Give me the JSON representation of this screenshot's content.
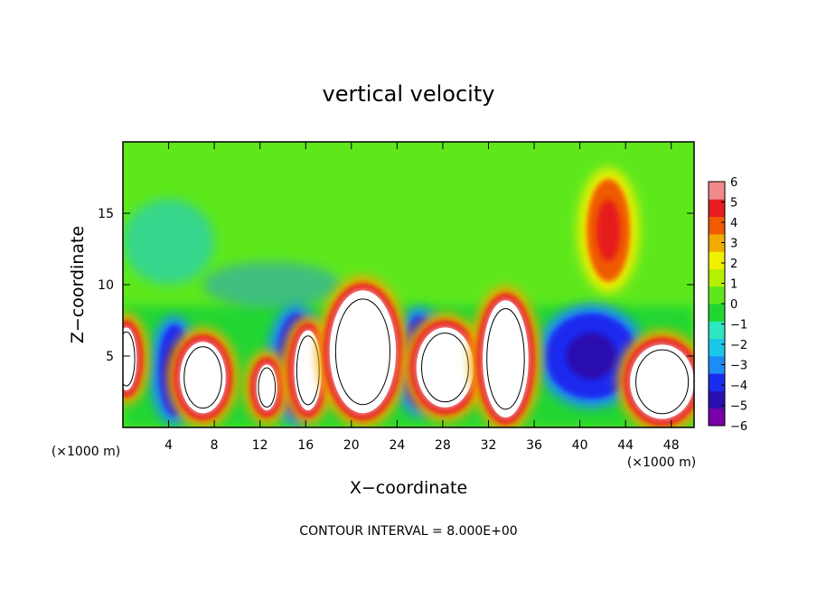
{
  "chart_data": {
    "type": "heatmap",
    "title": "vertical velocity",
    "xlabel": "X−coordinate",
    "ylabel": "Z−coordinate",
    "x_unit_left": "(×1000 m)",
    "x_unit_right": "(×1000 m)",
    "footer": "CONTOUR INTERVAL = 8.000E+00",
    "xlim": [
      0,
      50
    ],
    "ylim": [
      0,
      20
    ],
    "x_ticks": [
      4,
      8,
      12,
      16,
      20,
      24,
      28,
      32,
      36,
      40,
      44,
      48
    ],
    "x_tick_labels": [
      "4",
      "8",
      "12",
      "16",
      "20",
      "24",
      "28",
      "32",
      "36",
      "40",
      "44",
      "48"
    ],
    "y_ticks": [
      5,
      10,
      15
    ],
    "y_tick_labels": [
      "5",
      "10",
      "15"
    ],
    "colorbar": {
      "range": [
        -6,
        6
      ],
      "ticks": [
        6,
        5,
        4,
        3,
        2,
        1,
        0,
        -1,
        -2,
        -3,
        -4,
        -5,
        -6
      ],
      "tick_labels": [
        "6",
        "5",
        "4",
        "3",
        "2",
        "1",
        "0",
        "−1",
        "−2",
        "−3",
        "−4",
        "−5",
        "−6"
      ],
      "colors": [
        "#7a00a8",
        "#2a10b0",
        "#1a2cf0",
        "#1e8cf5",
        "#19c8e8",
        "#2ee6c0",
        "#22d630",
        "#5ee81c",
        "#b4f000",
        "#f0f000",
        "#f0aa00",
        "#f05a00",
        "#e61e1e",
        "#f08a8a"
      ]
    },
    "updrafts_gt6": [
      {
        "xc": 0.3,
        "zc": 4.8,
        "rx": 0.9,
        "rz": 2.2
      },
      {
        "xc": 7.0,
        "zc": 3.5,
        "rx": 2.0,
        "rz": 2.5
      },
      {
        "xc": 12.6,
        "zc": 2.8,
        "rx": 0.9,
        "rz": 1.6
      },
      {
        "xc": 16.2,
        "zc": 4.0,
        "rx": 1.2,
        "rz": 2.8
      },
      {
        "xc": 21.0,
        "zc": 5.3,
        "rx": 2.9,
        "rz": 4.3
      },
      {
        "xc": 28.2,
        "zc": 4.2,
        "rx": 2.5,
        "rz": 2.8
      },
      {
        "xc": 33.5,
        "zc": 4.8,
        "rx": 2.0,
        "rz": 4.1
      },
      {
        "xc": 47.2,
        "zc": 3.2,
        "rx": 2.8,
        "rz": 2.6
      }
    ],
    "downdrafts_lt_neg4": [
      {
        "xc": 4.5,
        "zc": 4.0,
        "rx": 1.4,
        "rz": 3.2
      },
      {
        "xc": 15.2,
        "zc": 4.4,
        "rx": 1.8,
        "rz": 3.6
      },
      {
        "xc": 26.0,
        "zc": 4.6,
        "rx": 1.7,
        "rz": 3.2
      },
      {
        "xc": 41.0,
        "zc": 5.0,
        "rx": 4.0,
        "rz": 3.0
      }
    ],
    "upper_updraft": {
      "xc": 42.5,
      "zc": 13.8,
      "rx": 1.9,
      "rz": 3.6,
      "peak": 5
    }
  }
}
